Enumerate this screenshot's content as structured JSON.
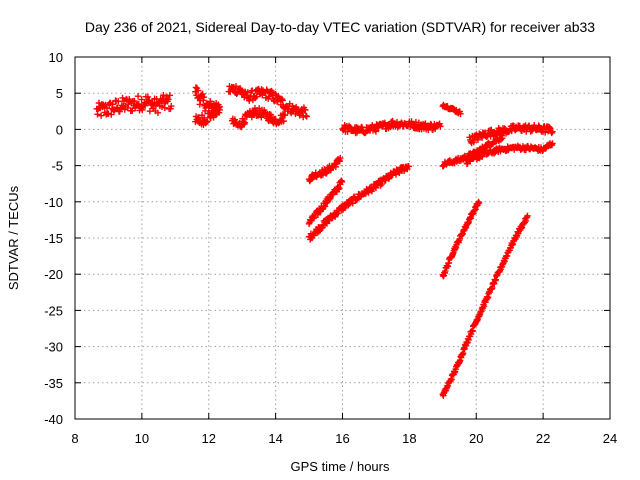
{
  "chart_data": {
    "type": "scatter",
    "title": "Day 236 of 2021, Sidereal Day-to-day VTEC variation (SDTVAR) for receiver ab33",
    "xlabel": "GPS time / hours",
    "ylabel": "SDTVAR / TECUs",
    "xlim": [
      8,
      24
    ],
    "ylim": [
      -40,
      10
    ],
    "x_ticks": [
      8,
      10,
      12,
      14,
      16,
      18,
      20,
      22,
      24
    ],
    "y_ticks": [
      10,
      5,
      0,
      -5,
      -10,
      -15,
      -20,
      -25,
      -30,
      -35,
      -40
    ],
    "grid": true,
    "marker": "plus",
    "color": "#ff0000",
    "tracks": [
      {
        "points": [
          [
            8.65,
            2.5
          ],
          [
            9.0,
            2.8
          ],
          [
            9.4,
            3.3
          ],
          [
            9.8,
            3.5
          ],
          [
            10.1,
            3.9
          ],
          [
            10.4,
            3.2
          ],
          [
            10.6,
            3.6
          ],
          [
            10.9,
            3.8
          ]
        ],
        "spread": 1.1
      },
      {
        "points": [
          [
            11.6,
            5.3
          ],
          [
            11.8,
            4.0
          ],
          [
            12.0,
            3.0
          ],
          [
            12.2,
            3.2
          ],
          [
            12.35,
            3.5
          ]
        ],
        "spread": 1.0
      },
      {
        "points": [
          [
            11.6,
            1.0
          ],
          [
            11.9,
            1.5
          ],
          [
            12.1,
            2.2
          ],
          [
            12.35,
            2.8
          ]
        ],
        "spread": 0.8
      },
      {
        "points": [
          [
            12.6,
            5.5
          ],
          [
            12.9,
            5.6
          ],
          [
            13.1,
            4.5
          ],
          [
            13.3,
            4.7
          ],
          [
            13.6,
            5.0
          ],
          [
            13.8,
            4.9
          ],
          [
            14.1,
            4.0
          ],
          [
            14.4,
            3.0
          ],
          [
            14.7,
            2.5
          ],
          [
            14.95,
            2.2
          ]
        ],
        "spread": 0.7
      },
      {
        "points": [
          [
            12.7,
            1.0
          ],
          [
            12.9,
            0.5
          ],
          [
            13.1,
            1.5
          ],
          [
            13.4,
            2.5
          ],
          [
            13.7,
            2.0
          ],
          [
            14.0,
            1.2
          ],
          [
            14.3,
            1.8
          ]
        ],
        "spread": 0.6
      },
      {
        "points": [
          [
            15.0,
            -6.8
          ],
          [
            15.2,
            -6.2
          ],
          [
            15.5,
            -5.8
          ],
          [
            15.8,
            -4.8
          ],
          [
            15.95,
            -3.9
          ]
        ],
        "spread": 0.4
      },
      {
        "points": [
          [
            15.0,
            -12.9
          ],
          [
            15.3,
            -11.3
          ],
          [
            15.6,
            -9.5
          ],
          [
            15.85,
            -8.2
          ],
          [
            16.0,
            -7.1
          ]
        ],
        "spread": 0.4
      },
      {
        "points": [
          [
            15.0,
            -15.0
          ],
          [
            15.5,
            -12.8
          ],
          [
            16.0,
            -10.8
          ],
          [
            16.5,
            -9.2
          ],
          [
            17.0,
            -7.8
          ],
          [
            17.5,
            -6.2
          ],
          [
            18.0,
            -5.0
          ]
        ],
        "spread": 0.4
      },
      {
        "points": [
          [
            16.0,
            0.2
          ],
          [
            16.5,
            -0.2
          ],
          [
            17.0,
            0.2
          ],
          [
            17.5,
            0.8
          ],
          [
            18.0,
            0.7
          ],
          [
            18.5,
            0.4
          ],
          [
            18.95,
            0.4
          ]
        ],
        "spread": 0.5
      },
      {
        "points": [
          [
            19.0,
            3.4
          ],
          [
            19.3,
            2.8
          ],
          [
            19.55,
            2.2
          ]
        ],
        "spread": 0.2
      },
      {
        "points": [
          [
            19.0,
            -4.8
          ],
          [
            19.5,
            -4.2
          ],
          [
            20.0,
            -3.2
          ],
          [
            20.4,
            -2.0
          ],
          [
            20.8,
            -1.0
          ]
        ],
        "spread": 0.3
      },
      {
        "points": [
          [
            19.7,
            -4.5
          ],
          [
            20.2,
            -3.5
          ],
          [
            20.7,
            -2.8
          ],
          [
            21.2,
            -2.5
          ],
          [
            21.7,
            -2.6
          ],
          [
            22.0,
            -2.8
          ],
          [
            22.3,
            -1.8
          ]
        ],
        "spread": 0.3
      },
      {
        "points": [
          [
            19.8,
            -1.5
          ],
          [
            20.3,
            -0.6
          ],
          [
            20.8,
            -0.2
          ],
          [
            21.3,
            0.2
          ],
          [
            21.8,
            0.1
          ],
          [
            22.3,
            -0.1
          ]
        ],
        "spread": 0.5
      },
      {
        "points": [
          [
            19.0,
            -20.3
          ],
          [
            19.3,
            -17.0
          ],
          [
            19.6,
            -14.2
          ],
          [
            19.9,
            -11.5
          ],
          [
            20.1,
            -9.8
          ]
        ],
        "spread": 0.25
      },
      {
        "points": [
          [
            19.0,
            -36.8
          ],
          [
            19.4,
            -33.0
          ],
          [
            19.8,
            -28.5
          ],
          [
            20.2,
            -24.5
          ],
          [
            20.6,
            -20.5
          ],
          [
            21.0,
            -16.5
          ],
          [
            21.3,
            -13.8
          ],
          [
            21.55,
            -12.0
          ]
        ],
        "spread": 0.25
      }
    ]
  }
}
